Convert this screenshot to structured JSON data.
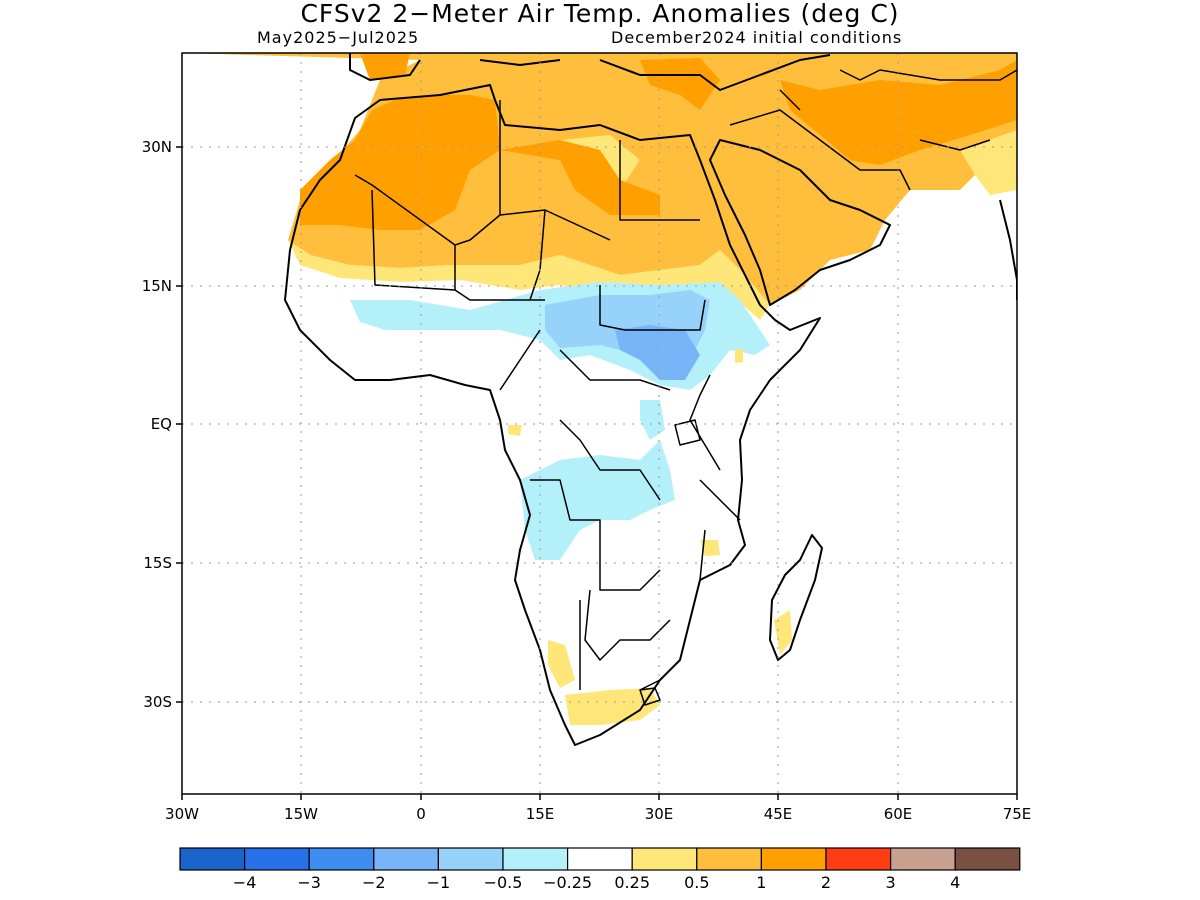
{
  "title": "CFSv2 2−Meter Air Temp. Anomalies (deg C)",
  "subtitle_left": "May2025−Jul2025",
  "subtitle_right": "December2024 initial conditions",
  "map": {
    "lon_range": [
      -30,
      75
    ],
    "lat_range": [
      -47,
      44
    ],
    "lon_ticks": [
      "30W",
      "15W",
      "0",
      "15E",
      "30E",
      "45E",
      "60E",
      "75E"
    ],
    "lat_ticks": [
      "30N",
      "15N",
      "EQ",
      "15S",
      "30S"
    ],
    "grid": "dotted"
  },
  "colorbar": {
    "colors": [
      "#1965cc",
      "#2670e8",
      "#3d8cf0",
      "#78b4f8",
      "#96d2fa",
      "#b4f0fa",
      "#ffffff",
      "#ffe678",
      "#ffbe3c",
      "#ffa000",
      "#ff3c14",
      "#c8a090",
      "#7a5045"
    ],
    "labels": [
      "−4",
      "−3",
      "−2",
      "−1",
      "−0.5",
      "−0.25",
      "0.25",
      "0.5",
      "1",
      "2",
      "3",
      "4"
    ]
  }
}
